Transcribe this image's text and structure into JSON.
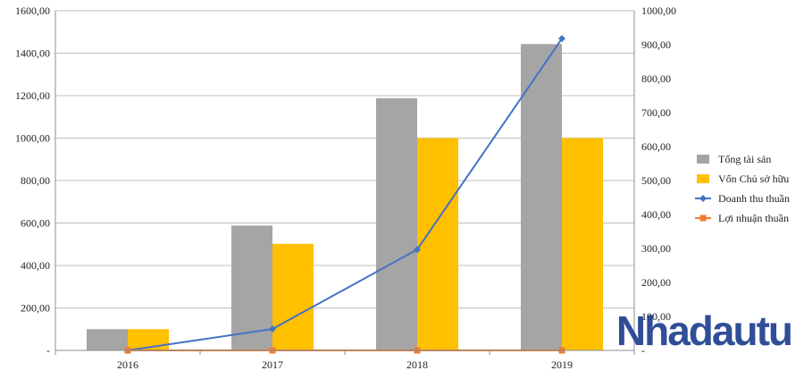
{
  "chart_data": {
    "type": "bar",
    "categories": [
      "2016",
      "2017",
      "2018",
      "2019"
    ],
    "series": [
      {
        "name": "Tổng tài sản",
        "kind": "bar",
        "axis": "left",
        "color": "#a5a5a5",
        "values": [
          100,
          588,
          1188,
          1443
        ]
      },
      {
        "name": "Vốn Chủ sở hữu",
        "kind": "bar",
        "axis": "left",
        "color": "#ffc000",
        "values": [
          100,
          502,
          1000,
          1000
        ]
      },
      {
        "name": "Doanh thu thuần",
        "kind": "line",
        "axis": "right",
        "marker": "diamond",
        "color": "#4472c4",
        "values": [
          0,
          63,
          297,
          918
        ]
      },
      {
        "name": "Lợi nhuận thuần",
        "kind": "line",
        "axis": "right",
        "marker": "square",
        "color": "#ed7d31",
        "values": [
          0,
          0,
          0,
          0
        ]
      }
    ],
    "y_left": {
      "ylim": [
        0,
        1600
      ],
      "ticks": [
        "-",
        "200,00",
        "400,00",
        "600,00",
        "800,00",
        "1000,00",
        "1200,00",
        "1400,00",
        "1600,00"
      ]
    },
    "y_right": {
      "ylim": [
        0,
        1000
      ],
      "ticks": [
        "-",
        "100,00",
        "200,00",
        "300,00",
        "400,00",
        "500,00",
        "600,00",
        "700,00",
        "800,00",
        "900,00",
        "1000,00"
      ]
    },
    "grid": true,
    "legend_position": "right",
    "title": "",
    "xlabel": "",
    "ylabel": ""
  },
  "watermark": "Nhadautu"
}
